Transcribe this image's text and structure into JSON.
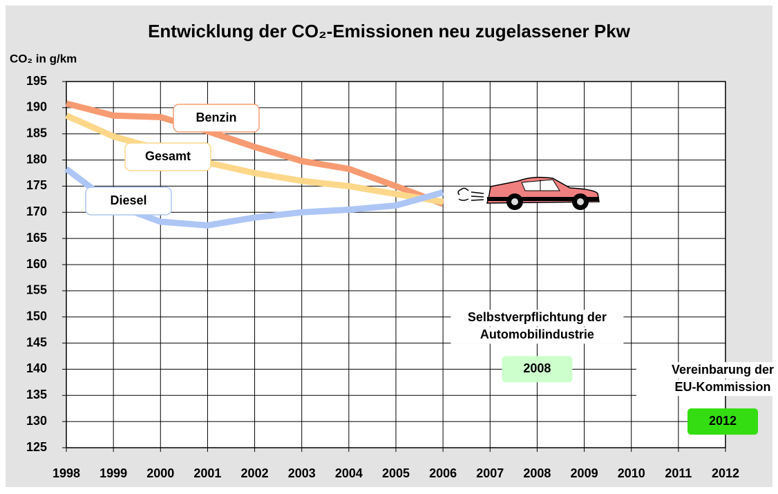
{
  "chart_data": {
    "type": "line",
    "title": "Entwicklung der CO₂-Emissionen neu zugelassener Pkw",
    "y_label": "CO₂ in g/km",
    "x": [
      1998,
      1999,
      2000,
      2001,
      2002,
      2003,
      2004,
      2005,
      2006
    ],
    "series": [
      {
        "name": "Benzin",
        "color": "#f79b72",
        "values": [
          190.8,
          188.5,
          188.2,
          185.5,
          182.5,
          179.8,
          178.3,
          175,
          171.6
        ]
      },
      {
        "name": "Gesamt",
        "color": "#fdd88a",
        "values": [
          188.5,
          184.5,
          182,
          179.5,
          177.5,
          176,
          175,
          173.5,
          172
        ]
      },
      {
        "name": "Diesel",
        "color": "#adc6f5",
        "values": [
          178.3,
          171.5,
          168.2,
          167.5,
          169,
          170,
          170.5,
          171.3,
          173.8
        ]
      }
    ],
    "targets": [
      {
        "label": [
          "Selbstverpflichtung der",
          "Automobilindustrie"
        ],
        "x": 2008,
        "value": 140,
        "color": "#ccffcc"
      },
      {
        "label": [
          "Vereinbarung der",
          "EU-Kommission"
        ],
        "x": 2012,
        "value": 130,
        "color": "#33dd11"
      }
    ],
    "xlim": [
      1998,
      2012
    ],
    "xticks": [
      1998,
      1999,
      2000,
      2001,
      2002,
      2003,
      2004,
      2005,
      2006,
      2007,
      2008,
      2009,
      2010,
      2011,
      2012
    ],
    "ylim": [
      125,
      195
    ],
    "yticks": [
      125,
      130,
      135,
      140,
      145,
      150,
      155,
      160,
      165,
      170,
      175,
      180,
      185,
      190,
      195
    ],
    "grid": true
  }
}
